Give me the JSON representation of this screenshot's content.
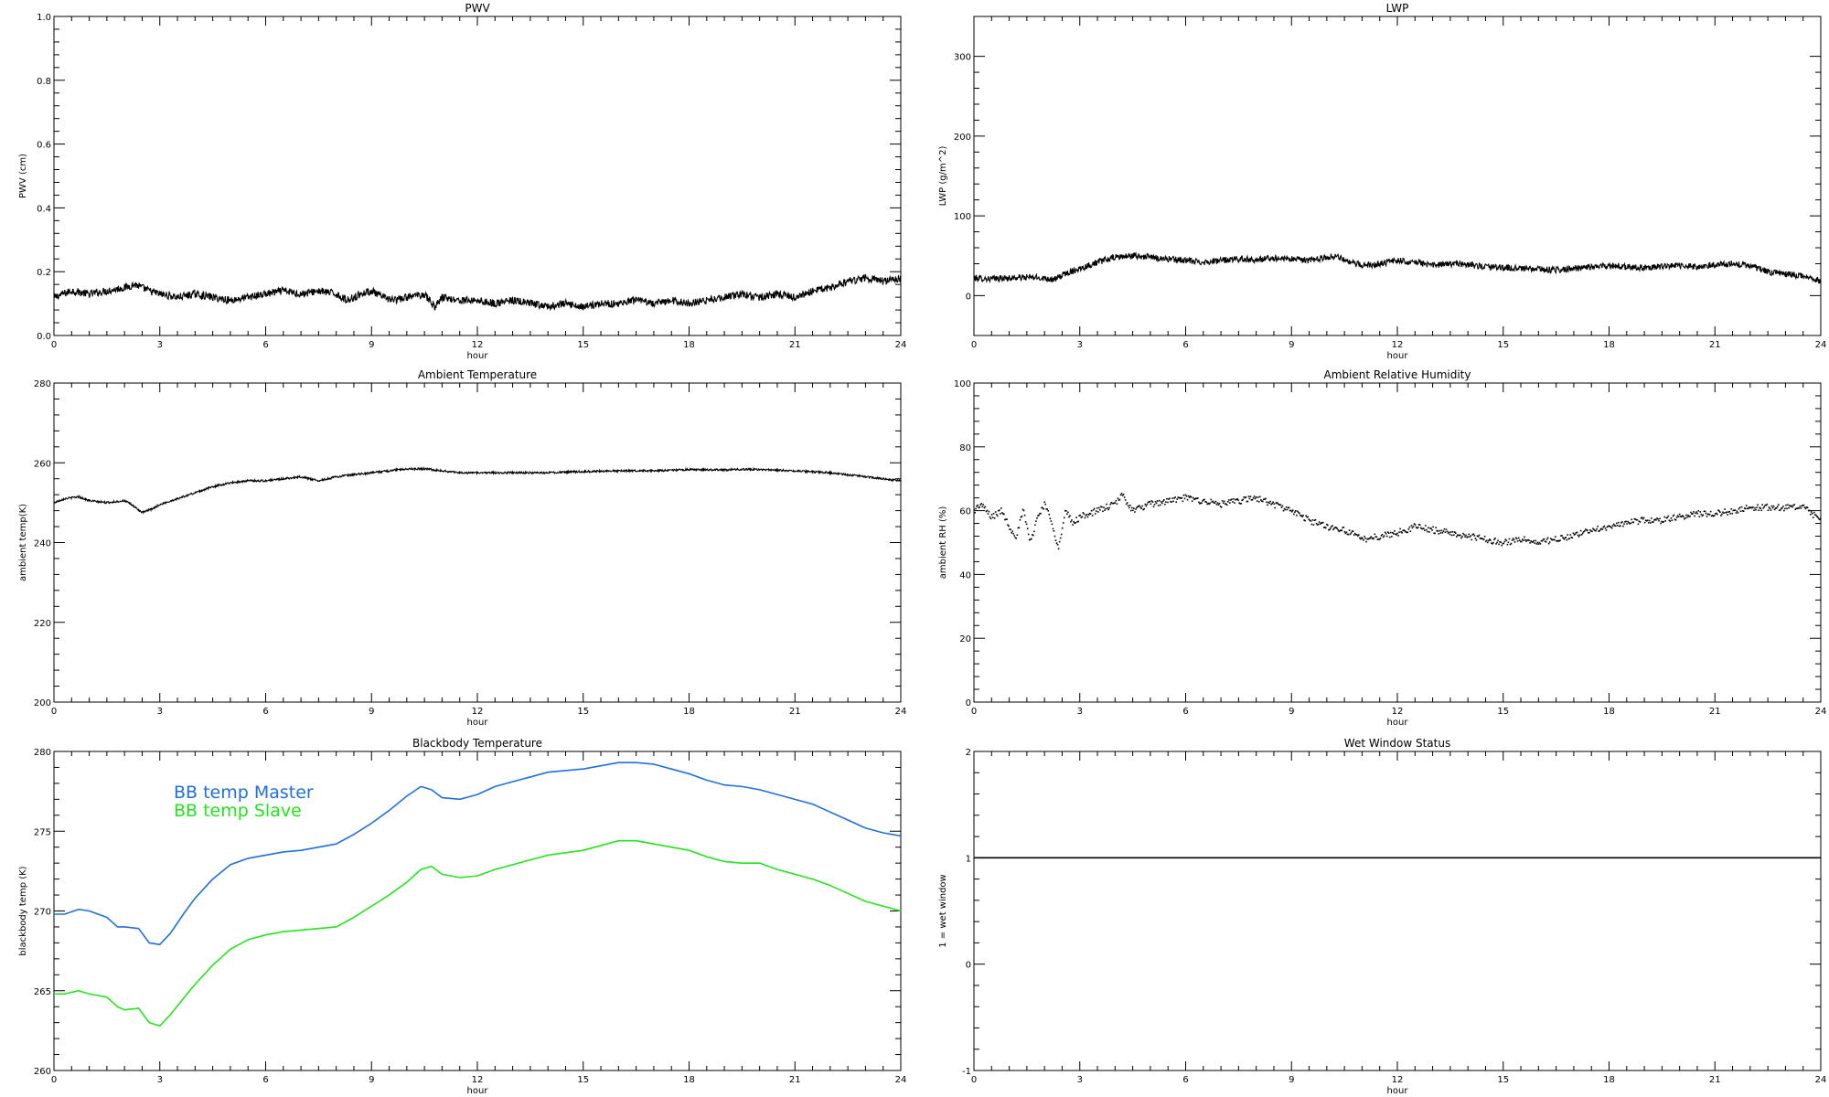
{
  "chart_data": [
    {
      "id": "pwv",
      "type": "line",
      "title": "PWV",
      "xlabel": "hour",
      "ylabel": "PWV (cm)",
      "xlim": [
        0,
        24
      ],
      "ylim": [
        0,
        1.0
      ],
      "xticks": [
        0,
        3,
        6,
        9,
        12,
        15,
        18,
        21,
        24
      ],
      "yticks": [
        0.0,
        0.2,
        0.4,
        0.6,
        0.8,
        1.0
      ],
      "ytick_labels": [
        "0.0",
        "0.2",
        "0.4",
        "0.6",
        "0.8",
        "1.0"
      ],
      "series": [
        {
          "color": "#000000",
          "noise": 0.012,
          "x": [
            0,
            0.5,
            1,
            1.5,
            2,
            2.3,
            2.7,
            3,
            3.5,
            4,
            4.5,
            5,
            5.5,
            6,
            6.5,
            7,
            7.5,
            8,
            8.3,
            8.7,
            9,
            9.3,
            9.7,
            10,
            10.5,
            10.8,
            11,
            11.5,
            12,
            12.5,
            13,
            13.5,
            14,
            14.5,
            15,
            15.5,
            16,
            16.5,
            17,
            17.5,
            18,
            18.5,
            19,
            19.5,
            20,
            20.5,
            21,
            21.5,
            22,
            22.5,
            23,
            23.5,
            24
          ],
          "y": [
            0.12,
            0.14,
            0.13,
            0.14,
            0.15,
            0.16,
            0.14,
            0.13,
            0.12,
            0.13,
            0.12,
            0.11,
            0.12,
            0.13,
            0.14,
            0.13,
            0.14,
            0.13,
            0.11,
            0.13,
            0.14,
            0.12,
            0.11,
            0.12,
            0.13,
            0.09,
            0.12,
            0.11,
            0.11,
            0.1,
            0.11,
            0.1,
            0.09,
            0.1,
            0.09,
            0.1,
            0.1,
            0.11,
            0.1,
            0.11,
            0.1,
            0.11,
            0.12,
            0.13,
            0.12,
            0.13,
            0.12,
            0.14,
            0.15,
            0.17,
            0.18,
            0.17,
            0.18
          ]
        }
      ]
    },
    {
      "id": "lwp",
      "type": "line",
      "title": "LWP",
      "xlabel": "hour",
      "ylabel": "LWP (g/m^2)",
      "xlim": [
        0,
        24
      ],
      "ylim": [
        -50,
        350
      ],
      "xticks": [
        0,
        3,
        6,
        9,
        12,
        15,
        18,
        21,
        24
      ],
      "yticks": [
        0,
        100,
        200,
        300
      ],
      "ytick_labels": [
        "0",
        "100",
        "200",
        "300"
      ],
      "series": [
        {
          "color": "#000000",
          "noise": 4,
          "x": [
            0,
            0.5,
            1,
            1.5,
            2,
            2.3,
            2.6,
            3,
            3.5,
            4,
            4.5,
            5,
            5.5,
            6,
            6.5,
            7,
            7.5,
            8,
            8.5,
            9,
            9.5,
            10,
            10.3,
            10.6,
            11,
            11.5,
            12,
            12.5,
            13,
            13.5,
            14,
            14.5,
            15,
            15.5,
            16,
            16.5,
            17,
            17.5,
            18,
            18.5,
            19,
            19.5,
            20,
            20.5,
            21,
            21.5,
            22,
            22.5,
            23,
            23.5,
            24
          ],
          "y": [
            22,
            21,
            22,
            23,
            22,
            20,
            28,
            34,
            42,
            48,
            50,
            48,
            46,
            44,
            42,
            44,
            46,
            45,
            47,
            46,
            44,
            48,
            50,
            42,
            38,
            40,
            44,
            42,
            38,
            40,
            39,
            36,
            35,
            34,
            33,
            32,
            34,
            36,
            38,
            36,
            35,
            37,
            38,
            36,
            39,
            40,
            37,
            30,
            27,
            25,
            18
          ]
        }
      ]
    },
    {
      "id": "ambient-temp",
      "type": "line",
      "title": "Ambient Temperature",
      "xlabel": "hour",
      "ylabel": "ambient temp(K)",
      "xlim": [
        0,
        24
      ],
      "ylim": [
        200,
        280
      ],
      "xticks": [
        0,
        3,
        6,
        9,
        12,
        15,
        18,
        21,
        24
      ],
      "yticks": [
        200,
        220,
        240,
        260,
        280
      ],
      "ytick_labels": [
        "200",
        "220",
        "240",
        "260",
        "280"
      ],
      "series": [
        {
          "color": "#000000",
          "noise": 0.25,
          "x": [
            0,
            0.3,
            0.7,
            1,
            1.5,
            2,
            2.2,
            2.5,
            2.8,
            3,
            3.5,
            4,
            4.5,
            5,
            5.5,
            6,
            6.5,
            7,
            7.5,
            8,
            8.5,
            9,
            9.5,
            10,
            10.5,
            11,
            11.5,
            12,
            13,
            14,
            15,
            16,
            17,
            18,
            19,
            19.5,
            20,
            21,
            22,
            22.5,
            23,
            23.5,
            24
          ],
          "y": [
            250,
            251,
            251.5,
            250.5,
            250,
            250.5,
            249.5,
            247.5,
            248.5,
            249.5,
            251,
            252.5,
            254,
            255,
            255.5,
            255.5,
            256,
            256.5,
            255.5,
            256.5,
            257,
            257.5,
            258,
            258.5,
            258.5,
            258,
            257.5,
            257.5,
            257.5,
            257.5,
            257.8,
            258,
            258,
            258.3,
            258.2,
            258.4,
            258.3,
            258,
            257.5,
            257,
            256.5,
            256,
            255.5
          ]
        }
      ]
    },
    {
      "id": "ambient-rh",
      "type": "scatter",
      "title": "Ambient Relative Humidity",
      "xlabel": "hour",
      "ylabel": "ambient RH (%)",
      "xlim": [
        0,
        24
      ],
      "ylim": [
        0,
        100
      ],
      "xticks": [
        0,
        3,
        6,
        9,
        12,
        15,
        18,
        21,
        24
      ],
      "yticks": [
        0,
        20,
        40,
        60,
        80,
        100
      ],
      "ytick_labels": [
        "0",
        "20",
        "40",
        "60",
        "80",
        "100"
      ],
      "series": [
        {
          "color": "#000000",
          "noise": 1.0,
          "x": [
            0,
            0.2,
            0.5,
            0.8,
            1,
            1.2,
            1.4,
            1.6,
            1.8,
            2,
            2.2,
            2.4,
            2.6,
            2.8,
            3,
            3.5,
            4,
            4.2,
            4.5,
            5,
            5.5,
            6,
            6.5,
            7,
            7.5,
            8,
            8.5,
            9,
            9.5,
            10,
            10.5,
            11,
            11.5,
            12,
            12.5,
            13,
            13.5,
            14,
            14.5,
            15,
            15.5,
            16,
            16.5,
            17,
            17.5,
            18,
            18.5,
            19,
            19.5,
            20,
            20.5,
            21,
            21.5,
            22,
            22.5,
            23,
            23.5,
            24
          ],
          "y": [
            60,
            62,
            58,
            60,
            55,
            52,
            60,
            50,
            58,
            62,
            57,
            48,
            60,
            56,
            58,
            60,
            62,
            65,
            60,
            62,
            63,
            64,
            63,
            62,
            63,
            64,
            62,
            60,
            57,
            55,
            54,
            51,
            52,
            53,
            55,
            54,
            53,
            52,
            51,
            50,
            51,
            50,
            51,
            52,
            54,
            55,
            56,
            57,
            57,
            58,
            59,
            59,
            60,
            61,
            61,
            61,
            61,
            57
          ]
        }
      ]
    },
    {
      "id": "bb-temp",
      "type": "line",
      "title": "Blackbody Temperature",
      "xlabel": "hour",
      "ylabel": "blackbody temp (K)",
      "xlim": [
        0,
        24
      ],
      "ylim": [
        260,
        280
      ],
      "xticks": [
        0,
        3,
        6,
        9,
        12,
        15,
        18,
        21,
        24
      ],
      "yticks": [
        260,
        265,
        270,
        275,
        280
      ],
      "ytick_labels": [
        "260",
        "265",
        "270",
        "275",
        "280"
      ],
      "series": [
        {
          "name": "BB temp Master",
          "color": "#1f6fe0",
          "noise": 0,
          "x": [
            0,
            0.3,
            0.7,
            1,
            1.5,
            1.8,
            2,
            2.4,
            2.7,
            3,
            3.3,
            3.7,
            4,
            4.5,
            5,
            5.5,
            6,
            6.5,
            7,
            7.5,
            8,
            8.5,
            9,
            9.5,
            10,
            10.4,
            10.7,
            11,
            11.5,
            12,
            12.5,
            13,
            13.5,
            14,
            15,
            15.5,
            16,
            16.5,
            17,
            17.5,
            18,
            18.5,
            19,
            19.5,
            20,
            20.5,
            21,
            21.5,
            22,
            22.5,
            23,
            23.5,
            24
          ],
          "y": [
            269.8,
            269.8,
            270.1,
            270,
            269.6,
            269,
            269,
            268.9,
            268,
            267.9,
            268.6,
            269.9,
            270.8,
            272,
            272.9,
            273.3,
            273.5,
            273.7,
            273.8,
            274,
            274.2,
            274.8,
            275.5,
            276.3,
            277.2,
            277.8,
            277.6,
            277.1,
            277,
            277.3,
            277.8,
            278.1,
            278.4,
            278.7,
            278.9,
            279.1,
            279.3,
            279.3,
            279.2,
            278.9,
            278.6,
            278.2,
            277.9,
            277.8,
            277.6,
            277.3,
            277,
            276.7,
            276.2,
            275.7,
            275.2,
            274.9,
            274.7
          ]
        },
        {
          "name": "BB temp Slave",
          "color": "#22e51c",
          "noise": 0,
          "x": [
            0,
            0.3,
            0.7,
            1,
            1.5,
            1.8,
            2,
            2.4,
            2.7,
            3,
            3.3,
            3.7,
            4,
            4.5,
            5,
            5.5,
            6,
            6.5,
            7,
            7.5,
            8,
            8.5,
            9,
            9.5,
            10,
            10.4,
            10.7,
            11,
            11.5,
            12,
            12.5,
            13,
            13.5,
            14,
            15,
            15.5,
            16,
            16.5,
            17,
            17.5,
            18,
            18.5,
            19,
            19.5,
            20,
            20.5,
            21,
            21.5,
            22,
            22.5,
            23,
            23.5,
            24
          ],
          "y": [
            264.8,
            264.8,
            265,
            264.8,
            264.6,
            264,
            263.8,
            263.9,
            263,
            262.8,
            263.5,
            264.6,
            265.4,
            266.6,
            267.6,
            268.2,
            268.5,
            268.7,
            268.8,
            268.9,
            269,
            269.6,
            270.3,
            271,
            271.8,
            272.6,
            272.8,
            272.3,
            272.1,
            272.2,
            272.6,
            272.9,
            273.2,
            273.5,
            273.8,
            274.1,
            274.4,
            274.4,
            274.2,
            274,
            273.8,
            273.4,
            273.1,
            273,
            273,
            272.6,
            272.3,
            272,
            271.6,
            271.1,
            270.6,
            270.3,
            270
          ]
        }
      ],
      "legend": {
        "placement": "top-left-inside"
      }
    },
    {
      "id": "wet-window",
      "type": "line",
      "title": "Wet Window Status",
      "xlabel": "hour",
      "ylabel": "1 = wet window",
      "xlim": [
        0,
        24
      ],
      "ylim": [
        -1,
        2
      ],
      "xticks": [
        0,
        3,
        6,
        9,
        12,
        15,
        18,
        21,
        24
      ],
      "yticks": [
        -1,
        0,
        1,
        2
      ],
      "ytick_labels": [
        "-1",
        "0",
        "1",
        "2"
      ],
      "series": [
        {
          "color": "#000000",
          "noise": 0,
          "x": [
            0,
            24
          ],
          "y": [
            1,
            1
          ]
        }
      ]
    }
  ]
}
